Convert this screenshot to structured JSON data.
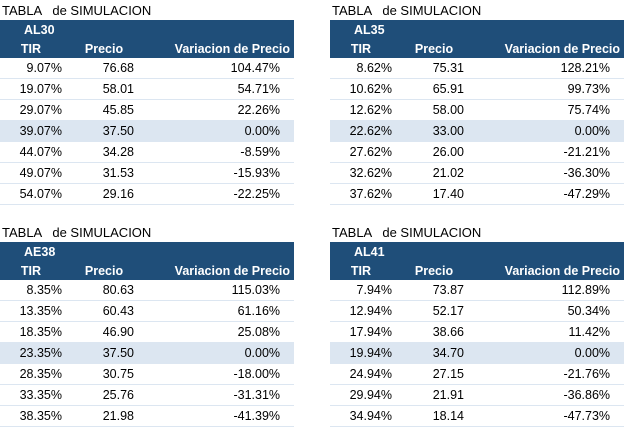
{
  "tables": [
    {
      "title": "TABLA   de SIMULACION",
      "code": "AL30",
      "headers": {
        "tir": "TIR",
        "precio": "Precio",
        "variacion": "Variacion de Precio"
      },
      "highlight_row": 3,
      "rows": [
        {
          "tir": "9.07%",
          "precio": "76.68",
          "variacion": "104.47%"
        },
        {
          "tir": "19.07%",
          "precio": "58.01",
          "variacion": "54.71%"
        },
        {
          "tir": "29.07%",
          "precio": "45.85",
          "variacion": "22.26%"
        },
        {
          "tir": "39.07%",
          "precio": "37.50",
          "variacion": "0.00%"
        },
        {
          "tir": "44.07%",
          "precio": "34.28",
          "variacion": "-8.59%"
        },
        {
          "tir": "49.07%",
          "precio": "31.53",
          "variacion": "-15.93%"
        },
        {
          "tir": "54.07%",
          "precio": "29.16",
          "variacion": "-22.25%"
        }
      ]
    },
    {
      "title": "TABLA   de SIMULACION",
      "code": "AL35",
      "headers": {
        "tir": "TIR",
        "precio": "Precio",
        "variacion": "Variacion de Precio"
      },
      "highlight_row": 3,
      "rows": [
        {
          "tir": "8.62%",
          "precio": "75.31",
          "variacion": "128.21%"
        },
        {
          "tir": "10.62%",
          "precio": "65.91",
          "variacion": "99.73%"
        },
        {
          "tir": "12.62%",
          "precio": "58.00",
          "variacion": "75.74%"
        },
        {
          "tir": "22.62%",
          "precio": "33.00",
          "variacion": "0.00%"
        },
        {
          "tir": "27.62%",
          "precio": "26.00",
          "variacion": "-21.21%"
        },
        {
          "tir": "32.62%",
          "precio": "21.02",
          "variacion": "-36.30%"
        },
        {
          "tir": "37.62%",
          "precio": "17.40",
          "variacion": "-47.29%"
        }
      ]
    },
    {
      "title": "TABLA   de SIMULACION",
      "code": "AE38",
      "headers": {
        "tir": "TIR",
        "precio": "Precio",
        "variacion": "Variacion de Precio"
      },
      "highlight_row": 3,
      "rows": [
        {
          "tir": "8.35%",
          "precio": "80.63",
          "variacion": "115.03%"
        },
        {
          "tir": "13.35%",
          "precio": "60.43",
          "variacion": "61.16%"
        },
        {
          "tir": "18.35%",
          "precio": "46.90",
          "variacion": "25.08%"
        },
        {
          "tir": "23.35%",
          "precio": "37.50",
          "variacion": "0.00%"
        },
        {
          "tir": "28.35%",
          "precio": "30.75",
          "variacion": "-18.00%"
        },
        {
          "tir": "33.35%",
          "precio": "25.76",
          "variacion": "-31.31%"
        },
        {
          "tir": "38.35%",
          "precio": "21.98",
          "variacion": "-41.39%"
        }
      ]
    },
    {
      "title": "TABLA   de SIMULACION",
      "code": "AL41",
      "headers": {
        "tir": "TIR",
        "precio": "Precio",
        "variacion": "Variacion de Precio"
      },
      "highlight_row": 3,
      "rows": [
        {
          "tir": "7.94%",
          "precio": "73.87",
          "variacion": "112.89%"
        },
        {
          "tir": "12.94%",
          "precio": "52.17",
          "variacion": "50.34%"
        },
        {
          "tir": "17.94%",
          "precio": "38.66",
          "variacion": "11.42%"
        },
        {
          "tir": "19.94%",
          "precio": "34.70",
          "variacion": "0.00%"
        },
        {
          "tir": "24.94%",
          "precio": "27.15",
          "variacion": "-21.76%"
        },
        {
          "tir": "29.94%",
          "precio": "21.91",
          "variacion": "-36.86%"
        },
        {
          "tir": "34.94%",
          "precio": "18.14",
          "variacion": "-47.73%"
        }
      ]
    }
  ],
  "colors": {
    "header_bg": "#1f4e79",
    "header_text": "#ffffff",
    "highlight_row_bg": "#dce6f1"
  }
}
